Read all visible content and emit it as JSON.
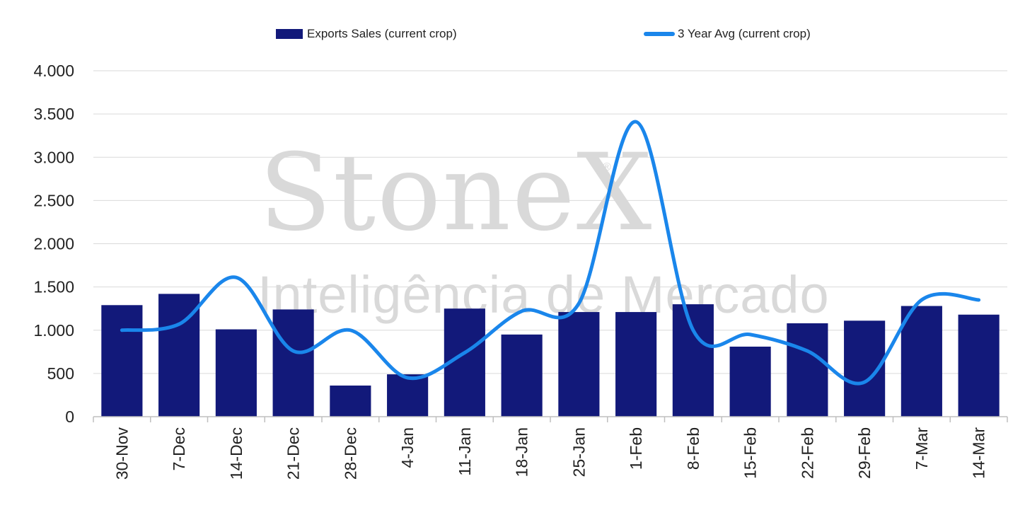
{
  "legend": {
    "bars_label": "Exports Sales (current crop)",
    "line_label": "3 Year Avg (current crop)"
  },
  "watermark": {
    "brand": "StoneX",
    "registered": "®",
    "subtitle": "Inteligência de Mercado"
  },
  "colors": {
    "bars": "#12197a",
    "line": "#1a86eb",
    "grid": "#d9d9d9",
    "axis": "#bfbfbf",
    "text": "#222222"
  },
  "chart_data": {
    "type": "bar",
    "categories": [
      "30-Nov",
      "7-Dec",
      "14-Dec",
      "21-Dec",
      "28-Dec",
      "4-Jan",
      "11-Jan",
      "18-Jan",
      "25-Jan",
      "1-Feb",
      "8-Feb",
      "15-Feb",
      "22-Feb",
      "29-Feb",
      "7-Mar",
      "14-Mar"
    ],
    "series": [
      {
        "name": "Exports Sales (current crop)",
        "type": "bar",
        "values": [
          1290,
          1420,
          1010,
          1240,
          360,
          490,
          1250,
          950,
          1210,
          1210,
          1300,
          810,
          1080,
          1110,
          1280,
          1180
        ]
      },
      {
        "name": "3 Year Avg (current crop)",
        "type": "line",
        "smooth": true,
        "values": [
          1000,
          1070,
          1610,
          760,
          1000,
          450,
          740,
          1220,
          1310,
          3410,
          1000,
          950,
          760,
          400,
          1350,
          1350
        ]
      }
    ],
    "ylim": [
      0,
      4000
    ],
    "yticks": [
      0,
      500,
      1000,
      1500,
      2000,
      2500,
      3000,
      3500,
      4000
    ],
    "ytick_labels": [
      "0",
      "500",
      "1.000",
      "1.500",
      "2.000",
      "2.500",
      "3.000",
      "3.500",
      "4.000"
    ],
    "grid": true,
    "legend_position": "top"
  }
}
